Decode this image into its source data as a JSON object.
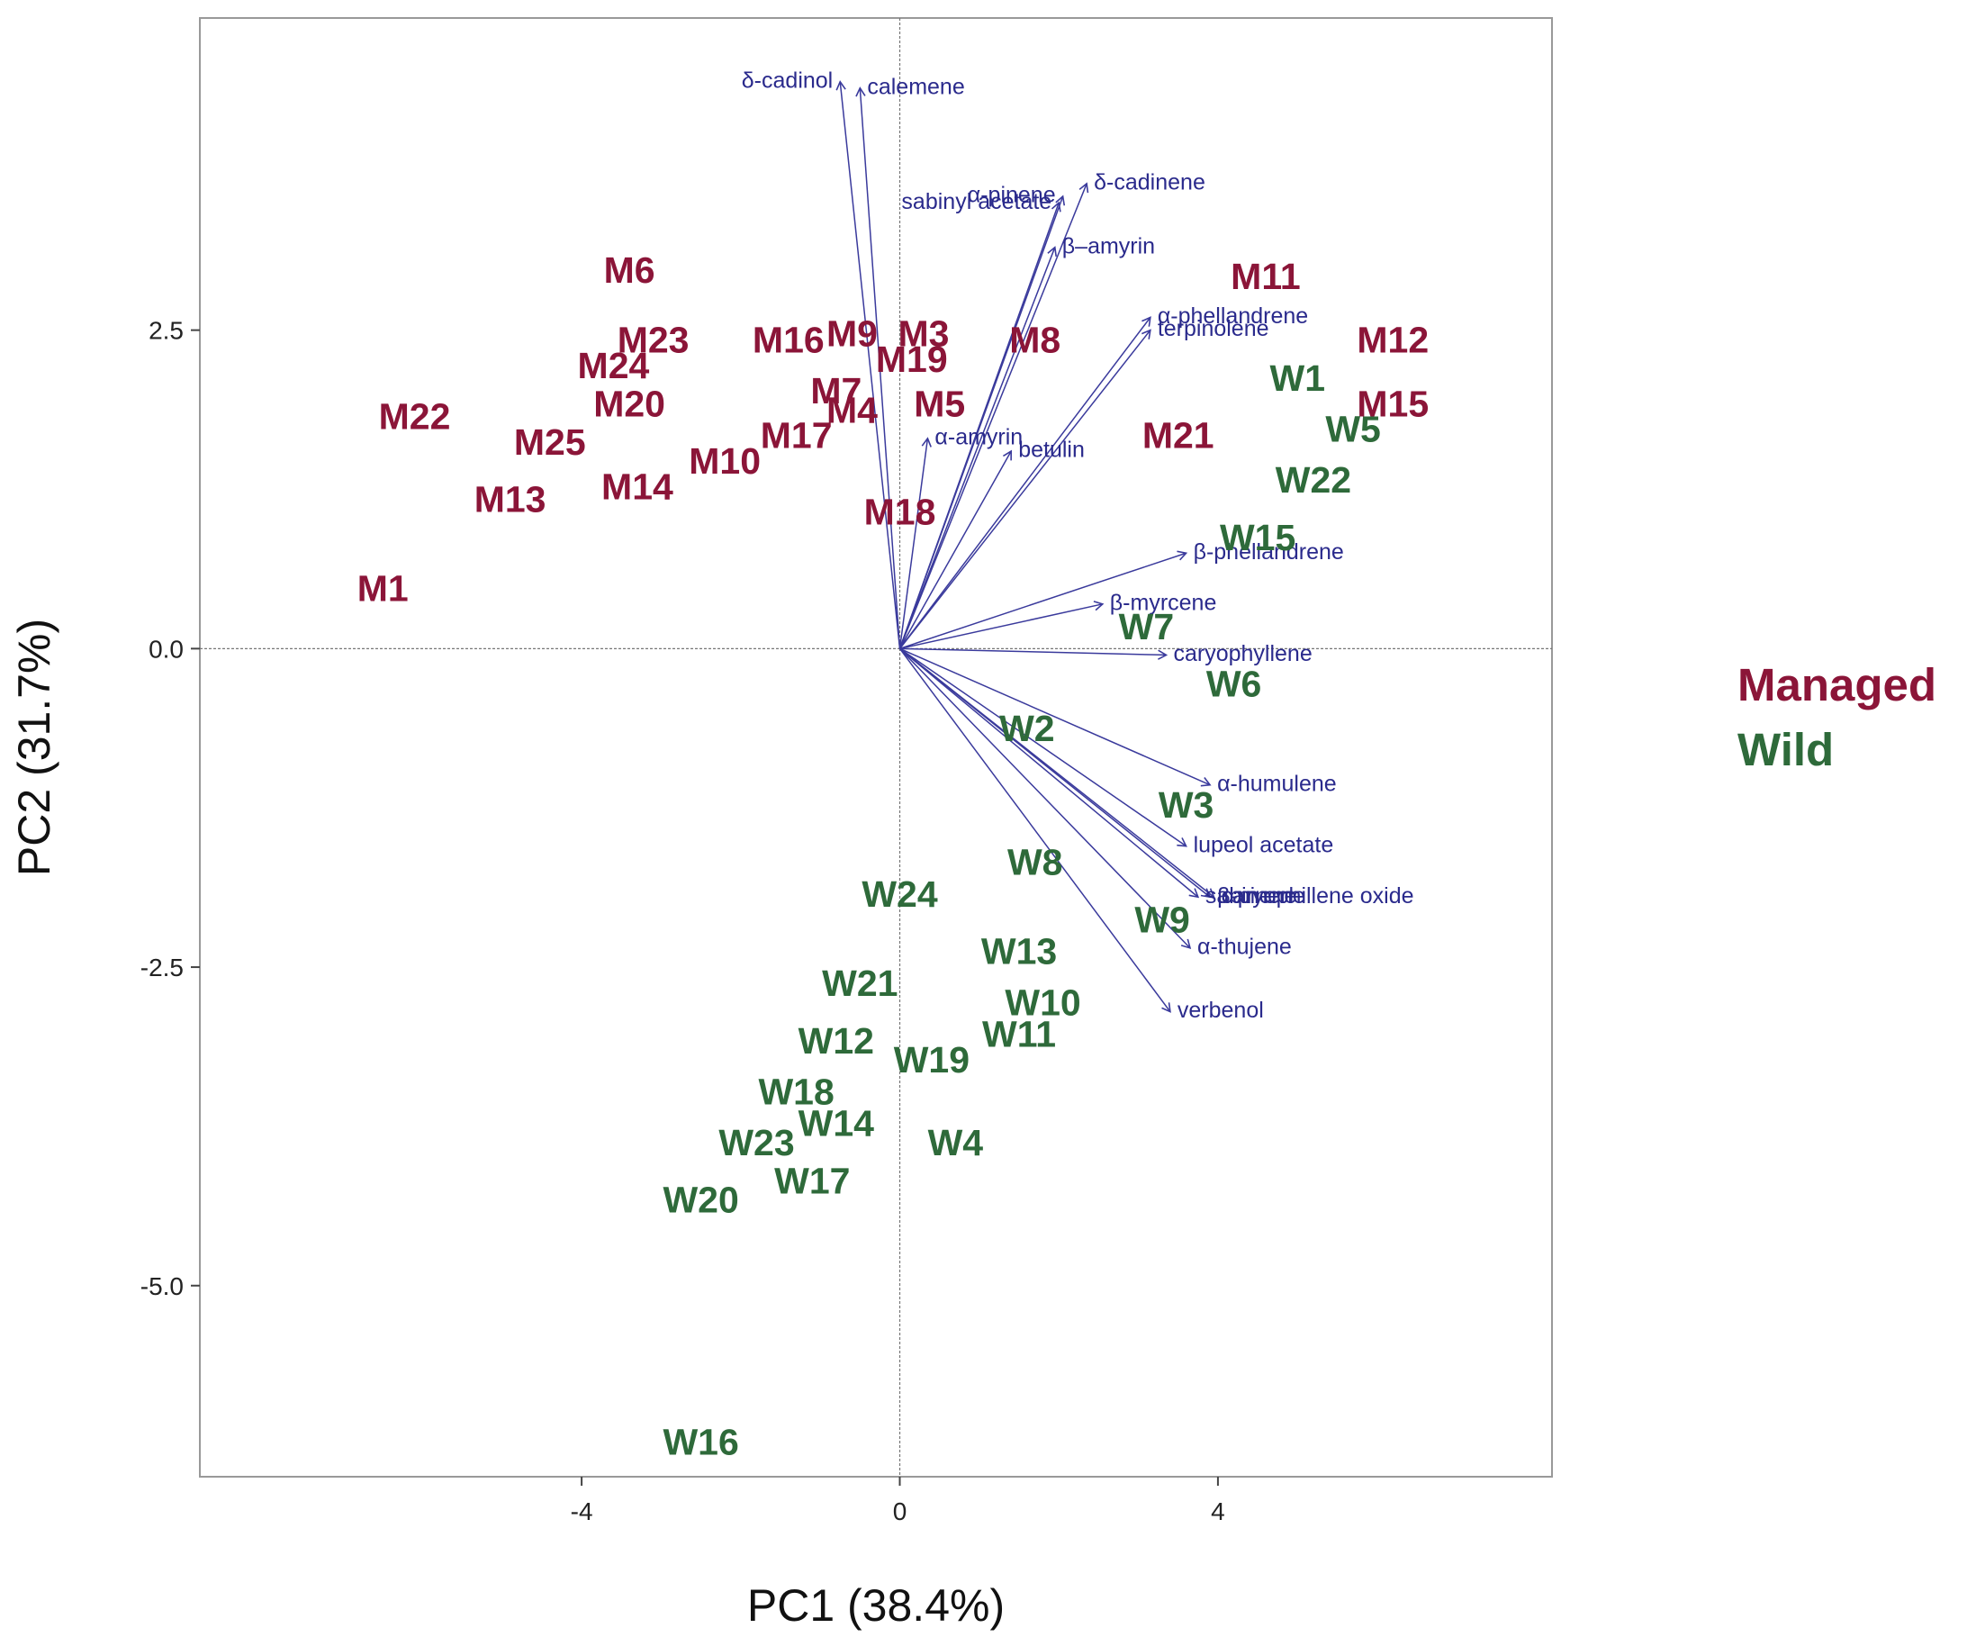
{
  "chart_data": {
    "type": "scatter",
    "subtype": "pca-biplot",
    "xlabel": "PC1 (38.4%)",
    "ylabel": "PC2 (31.7%)",
    "xlim": [
      -8.8,
      8.2
    ],
    "ylim": [
      -6.5,
      4.95
    ],
    "x_ticks": [
      {
        "value": -4,
        "label": "-4"
      },
      {
        "value": 0,
        "label": "0"
      },
      {
        "value": 4,
        "label": "4"
      }
    ],
    "y_ticks": [
      {
        "value": 2.5,
        "label": "2.5"
      },
      {
        "value": 0,
        "label": "0.0"
      },
      {
        "value": -2.5,
        "label": "-2.5"
      },
      {
        "value": -5,
        "label": "-5.0"
      }
    ],
    "grid": false,
    "reference_lines": {
      "x": 0,
      "y": 0
    },
    "legend": {
      "position": "right",
      "entries": [
        {
          "group": "managed",
          "label": "Managed"
        },
        {
          "group": "wild",
          "label": "Wild"
        }
      ]
    },
    "colors": {
      "managed": "#8b1538",
      "wild": "#2e6a3a",
      "loading": "#3a3a9c",
      "frame": "#999999"
    },
    "series": [
      {
        "name": "Managed",
        "group": "managed",
        "points": [
          {
            "label": "M1",
            "x": -6.5,
            "y": 0.45
          },
          {
            "label": "M6",
            "x": -3.4,
            "y": 2.95
          },
          {
            "label": "M22",
            "x": -6.1,
            "y": 1.8
          },
          {
            "label": "M23",
            "x": -3.1,
            "y": 2.4
          },
          {
            "label": "M24",
            "x": -3.6,
            "y": 2.2
          },
          {
            "label": "M20",
            "x": -3.4,
            "y": 1.9
          },
          {
            "label": "M25",
            "x": -4.4,
            "y": 1.6
          },
          {
            "label": "M13",
            "x": -4.9,
            "y": 1.15
          },
          {
            "label": "M14",
            "x": -3.3,
            "y": 1.25
          },
          {
            "label": "M10",
            "x": -2.2,
            "y": 1.45
          },
          {
            "label": "M16",
            "x": -1.4,
            "y": 2.4
          },
          {
            "label": "M9",
            "x": -0.6,
            "y": 2.45
          },
          {
            "label": "M3",
            "x": 0.3,
            "y": 2.45
          },
          {
            "label": "M19",
            "x": 0.15,
            "y": 2.25
          },
          {
            "label": "M7",
            "x": -0.8,
            "y": 2.0
          },
          {
            "label": "M4",
            "x": -0.6,
            "y": 1.85
          },
          {
            "label": "M17",
            "x": -1.3,
            "y": 1.65
          },
          {
            "label": "M5",
            "x": 0.5,
            "y": 1.9
          },
          {
            "label": "M8",
            "x": 1.7,
            "y": 2.4
          },
          {
            "label": "M18",
            "x": 0.0,
            "y": 1.05
          },
          {
            "label": "M11",
            "x": 4.6,
            "y": 2.9
          },
          {
            "label": "M21",
            "x": 3.5,
            "y": 1.65
          },
          {
            "label": "M12",
            "x": 6.2,
            "y": 2.4
          },
          {
            "label": "M15",
            "x": 6.2,
            "y": 1.9
          }
        ]
      },
      {
        "name": "Wild",
        "group": "wild",
        "points": [
          {
            "label": "W1",
            "x": 5.0,
            "y": 2.1
          },
          {
            "label": "W5",
            "x": 5.7,
            "y": 1.7
          },
          {
            "label": "W22",
            "x": 5.2,
            "y": 1.3
          },
          {
            "label": "W15",
            "x": 4.5,
            "y": 0.85
          },
          {
            "label": "W7",
            "x": 3.1,
            "y": 0.15
          },
          {
            "label": "W6",
            "x": 4.2,
            "y": -0.3
          },
          {
            "label": "W2",
            "x": 1.6,
            "y": -0.65
          },
          {
            "label": "W3",
            "x": 3.6,
            "y": -1.25
          },
          {
            "label": "W8",
            "x": 1.7,
            "y": -1.7
          },
          {
            "label": "W9",
            "x": 3.3,
            "y": -2.15
          },
          {
            "label": "W24",
            "x": 0.0,
            "y": -1.95
          },
          {
            "label": "W13",
            "x": 1.5,
            "y": -2.4
          },
          {
            "label": "W21",
            "x": -0.5,
            "y": -2.65
          },
          {
            "label": "W10",
            "x": 1.8,
            "y": -2.8
          },
          {
            "label": "W11",
            "x": 1.5,
            "y": -3.05
          },
          {
            "label": "W12",
            "x": -0.8,
            "y": -3.1
          },
          {
            "label": "W19",
            "x": 0.4,
            "y": -3.25
          },
          {
            "label": "W18",
            "x": -1.3,
            "y": -3.5
          },
          {
            "label": "W14",
            "x": -0.8,
            "y": -3.75
          },
          {
            "label": "W23",
            "x": -1.8,
            "y": -3.9
          },
          {
            "label": "W4",
            "x": 0.7,
            "y": -3.9
          },
          {
            "label": "W17",
            "x": -1.1,
            "y": -4.2
          },
          {
            "label": "W20",
            "x": -2.5,
            "y": -4.35
          },
          {
            "label": "W16",
            "x": -2.5,
            "y": -6.25
          }
        ]
      }
    ],
    "loadings": [
      {
        "label": "δ-cadinol",
        "x": -0.75,
        "y": 4.45,
        "anchor": "end"
      },
      {
        "label": "calemene",
        "x": -0.5,
        "y": 4.4,
        "anchor": "start"
      },
      {
        "label": "sabinyl acetate",
        "x": 2.0,
        "y": 3.5,
        "anchor": "end"
      },
      {
        "label": "δ-cadinene",
        "x": 2.35,
        "y": 3.65,
        "anchor": "start"
      },
      {
        "label": "α-pinene",
        "x": 2.05,
        "y": 3.55,
        "anchor": "end"
      },
      {
        "label": "β–amyrin",
        "x": 1.95,
        "y": 3.15,
        "anchor": "start"
      },
      {
        "label": "α-phellandrene",
        "x": 3.15,
        "y": 2.6,
        "anchor": "start"
      },
      {
        "label": "terpinolene",
        "x": 3.15,
        "y": 2.5,
        "anchor": "start"
      },
      {
        "label": "α-amyrin",
        "x": 0.35,
        "y": 1.65,
        "anchor": "start"
      },
      {
        "label": "betulin",
        "x": 1.4,
        "y": 1.55,
        "anchor": "start"
      },
      {
        "label": "β-phellandrene",
        "x": 3.6,
        "y": 0.75,
        "anchor": "start"
      },
      {
        "label": "β-myrcene",
        "x": 2.55,
        "y": 0.35,
        "anchor": "start"
      },
      {
        "label": "caryophyllene",
        "x": 3.35,
        "y": -0.05,
        "anchor": "start"
      },
      {
        "label": "α-humulene",
        "x": 3.9,
        "y": -1.07,
        "anchor": "start"
      },
      {
        "label": "lupeol acetate",
        "x": 3.6,
        "y": -1.55,
        "anchor": "start"
      },
      {
        "label": "caryophillene oxide",
        "x": 3.95,
        "y": -1.95,
        "anchor": "start"
      },
      {
        "label": "β-pinene",
        "x": 3.9,
        "y": -1.95,
        "anchor": "start"
      },
      {
        "label": "sabinene",
        "x": 3.75,
        "y": -1.95,
        "anchor": "start"
      },
      {
        "label": "α-thujene",
        "x": 3.65,
        "y": -2.35,
        "anchor": "start"
      },
      {
        "label": "verbenol",
        "x": 3.4,
        "y": -2.85,
        "anchor": "start"
      }
    ]
  }
}
